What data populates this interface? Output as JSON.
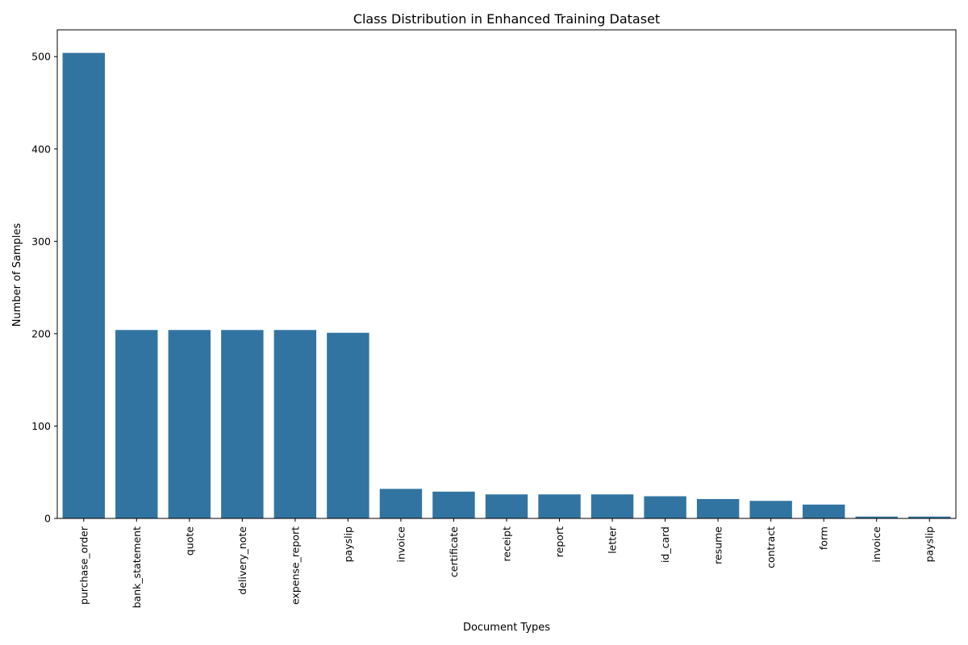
{
  "chart_data": {
    "type": "bar",
    "title": "Class Distribution in Enhanced Training Dataset",
    "xlabel": "Document Types",
    "ylabel": "Number of Samples",
    "categories": [
      "purchase_order",
      "bank_statement",
      "quote",
      "delivery_note",
      "expense_report",
      "payslip",
      "invoice",
      "certificate",
      "receipt",
      "report",
      "letter",
      "id_card",
      "resume",
      "contract",
      "form",
      "invoice",
      "payslip"
    ],
    "values": [
      504,
      204,
      204,
      204,
      204,
      201,
      32,
      29,
      26,
      26,
      26,
      24,
      21,
      19,
      15,
      2,
      2
    ],
    "ylim": [
      0,
      529
    ],
    "yticks": [
      0,
      100,
      200,
      300,
      400,
      500
    ],
    "grid": false,
    "bar_color": "#3274a1"
  }
}
